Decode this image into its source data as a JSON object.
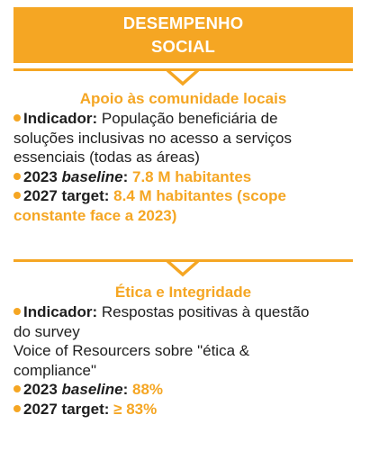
{
  "header": {
    "line1": "DESEMPENHO",
    "line2": "SOCIAL"
  },
  "colors": {
    "accent": "#f5a623",
    "text": "#1f1f1f"
  },
  "icons": [
    "chevron-down-icon",
    "bullet-dot-icon"
  ],
  "section1": {
    "title": "Apoio às comunidade locais",
    "indicator_label": "Indicador:",
    "indicator_text_line1": "População beneficiária de",
    "indicator_text_line2": "soluções inclusivas no acesso a serviços",
    "indicator_text_line3": "essenciais (todas as áreas)",
    "baseline_year": "2023 ",
    "baseline_word": "baseline",
    "baseline_colon": ":",
    "baseline_value": "7.8 M habitantes",
    "target_label": "2027 target:",
    "target_value_line1": "8.4 M habitantes (scope",
    "target_value_line2": "constante face a 2023)"
  },
  "section2": {
    "title": "Ética e Integridade",
    "indicator_label": "Indicador:",
    "indicator_text_line1": "Respostas positivas à questão",
    "indicator_text_line2": "do survey",
    "indicator_text_line3": "Voice of Resourcers sobre \"ética &",
    "indicator_text_line4": "compliance\"",
    "baseline_year": "2023 ",
    "baseline_word": "baseline",
    "baseline_colon": ":",
    "baseline_value": "88%",
    "target_label": "2027 target:",
    "target_value": "≥ 83%"
  }
}
